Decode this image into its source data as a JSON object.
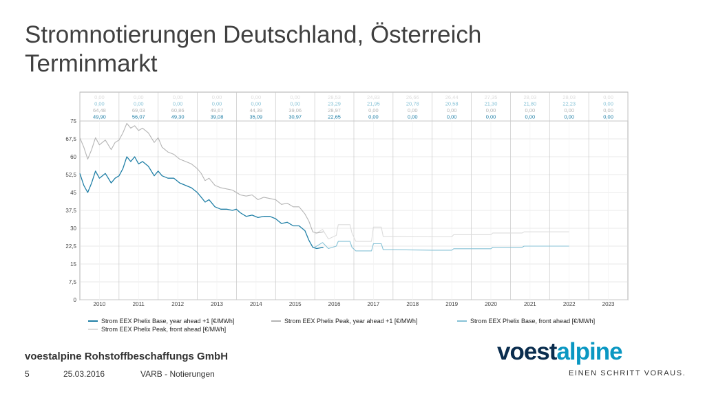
{
  "slide": {
    "title_line1": "Stromnotierungen Deutschland, Österreich",
    "title_line2": "Terminmarkt",
    "company": "voestalpine Rohstoffbeschaffungs GmbH",
    "page_number": "5",
    "date": "25.03.2016",
    "department": "VARB - Notierungen",
    "brand_part1": "voest",
    "brand_part2": "alpine",
    "tagline": "EINEN SCHRITT VORAUS."
  },
  "colors": {
    "base_year": "#1f7fa6",
    "peak_year": "#b4b4b4",
    "base_front": "#86c2d6",
    "peak_front": "#dcdcdc",
    "brand_dark": "#0a2d4e",
    "brand_light": "#0a97c2"
  },
  "chart_data": {
    "type": "line",
    "x_categories": [
      "2010",
      "2011",
      "2012",
      "2013",
      "2014",
      "2015",
      "2016",
      "2017",
      "2018",
      "2019",
      "2020",
      "2021",
      "2022",
      "2023"
    ],
    "y_ticks": [
      "0",
      "7,5",
      "15",
      "22,5",
      "30",
      "37,5",
      "45",
      "52,5",
      "60",
      "67,5",
      "75"
    ],
    "ylim": [
      0,
      75
    ],
    "grid": true,
    "legend_position": "bottom",
    "table_rows": [
      [
        "0,00",
        "0,00",
        "0,00",
        "0,00",
        "0,00",
        "0,00",
        "28,53",
        "24,83",
        "26,66",
        "26,44",
        "27,35",
        "28,03",
        "28,03",
        "0,00"
      ],
      [
        "0,00",
        "0,00",
        "0,00",
        "0,00",
        "0,00",
        "0,00",
        "23,29",
        "21,95",
        "20,78",
        "20,58",
        "21,30",
        "21,80",
        "22,23",
        "0,00"
      ],
      [
        "64,48",
        "69,03",
        "60,86",
        "49,67",
        "44,39",
        "39,06",
        "28,97",
        "0,00",
        "0,00",
        "0,00",
        "0,00",
        "0,00",
        "0,00",
        "0,00"
      ],
      [
        "49,90",
        "56,07",
        "49,30",
        "39,08",
        "35,09",
        "30,97",
        "22,65",
        "0,00",
        "0,00",
        "0,00",
        "0,00",
        "0,00",
        "0,00",
        "0,00"
      ]
    ],
    "series": [
      {
        "name": "Strom EEX Phelix Base, year ahead +1 [€/MWh]",
        "points": [
          [
            2010.0,
            53
          ],
          [
            2010.1,
            48
          ],
          [
            2010.2,
            45
          ],
          [
            2010.3,
            49
          ],
          [
            2010.4,
            54
          ],
          [
            2010.5,
            51
          ],
          [
            2010.65,
            53
          ],
          [
            2010.8,
            49
          ],
          [
            2010.9,
            51
          ],
          [
            2011.0,
            52
          ],
          [
            2011.1,
            55
          ],
          [
            2011.2,
            60
          ],
          [
            2011.3,
            58
          ],
          [
            2011.4,
            60
          ],
          [
            2011.5,
            57
          ],
          [
            2011.6,
            58
          ],
          [
            2011.75,
            56
          ],
          [
            2011.9,
            52
          ],
          [
            2012.0,
            54
          ],
          [
            2012.1,
            52
          ],
          [
            2012.25,
            51
          ],
          [
            2012.4,
            51
          ],
          [
            2012.55,
            49
          ],
          [
            2012.7,
            48
          ],
          [
            2012.85,
            47
          ],
          [
            2013.0,
            45
          ],
          [
            2013.1,
            43
          ],
          [
            2013.2,
            41
          ],
          [
            2013.3,
            42
          ],
          [
            2013.45,
            39
          ],
          [
            2013.6,
            38
          ],
          [
            2013.75,
            38
          ],
          [
            2013.9,
            37.5
          ],
          [
            2014.0,
            38
          ],
          [
            2014.1,
            36.5
          ],
          [
            2014.25,
            35
          ],
          [
            2014.4,
            35.5
          ],
          [
            2014.55,
            34.5
          ],
          [
            2014.7,
            35
          ],
          [
            2014.85,
            35
          ],
          [
            2015.0,
            34
          ],
          [
            2015.15,
            32
          ],
          [
            2015.3,
            32.5
          ],
          [
            2015.45,
            31
          ],
          [
            2015.6,
            31
          ],
          [
            2015.75,
            29
          ],
          [
            2015.85,
            25
          ],
          [
            2015.95,
            22
          ],
          [
            2016.05,
            21.5
          ],
          [
            2016.22,
            22
          ]
        ]
      },
      {
        "name": "Strom EEX Phelix Peak, year ahead +1 [€/MWh]",
        "points": [
          [
            2010.0,
            68
          ],
          [
            2010.1,
            64
          ],
          [
            2010.2,
            59
          ],
          [
            2010.3,
            63
          ],
          [
            2010.4,
            68
          ],
          [
            2010.5,
            65
          ],
          [
            2010.65,
            67
          ],
          [
            2010.8,
            63
          ],
          [
            2010.9,
            66
          ],
          [
            2011.0,
            67
          ],
          [
            2011.1,
            70
          ],
          [
            2011.2,
            74
          ],
          [
            2011.3,
            72
          ],
          [
            2011.4,
            73
          ],
          [
            2011.5,
            71
          ],
          [
            2011.6,
            72
          ],
          [
            2011.75,
            70
          ],
          [
            2011.9,
            66
          ],
          [
            2012.0,
            68
          ],
          [
            2012.1,
            64
          ],
          [
            2012.25,
            62
          ],
          [
            2012.4,
            61
          ],
          [
            2012.55,
            59
          ],
          [
            2012.7,
            58
          ],
          [
            2012.85,
            57
          ],
          [
            2013.0,
            55
          ],
          [
            2013.1,
            53
          ],
          [
            2013.2,
            50
          ],
          [
            2013.3,
            51
          ],
          [
            2013.45,
            48
          ],
          [
            2013.6,
            47
          ],
          [
            2013.75,
            46.5
          ],
          [
            2013.9,
            46
          ],
          [
            2014.0,
            45
          ],
          [
            2014.1,
            44
          ],
          [
            2014.25,
            43.5
          ],
          [
            2014.4,
            44
          ],
          [
            2014.55,
            42
          ],
          [
            2014.7,
            43
          ],
          [
            2014.85,
            42.5
          ],
          [
            2015.0,
            42
          ],
          [
            2015.15,
            40
          ],
          [
            2015.3,
            40.5
          ],
          [
            2015.45,
            39
          ],
          [
            2015.6,
            39
          ],
          [
            2015.75,
            36
          ],
          [
            2015.85,
            33
          ],
          [
            2015.95,
            28.5
          ],
          [
            2016.05,
            28
          ],
          [
            2016.22,
            28.5
          ]
        ]
      },
      {
        "name": "Strom EEX Phelix Base, front ahead [€/MWh]",
        "points": [
          [
            2016.0,
            22
          ],
          [
            2016.2,
            24
          ],
          [
            2016.35,
            21.5
          ],
          [
            2016.55,
            22.5
          ],
          [
            2016.6,
            24.5
          ],
          [
            2016.9,
            24.5
          ],
          [
            2016.95,
            22
          ],
          [
            2017.05,
            20.5
          ],
          [
            2017.45,
            20.5
          ],
          [
            2017.5,
            23.5
          ],
          [
            2017.7,
            23.5
          ],
          [
            2017.75,
            21
          ],
          [
            2018.0,
            21
          ],
          [
            2019.0,
            20.8
          ],
          [
            2019.5,
            20.8
          ],
          [
            2019.55,
            21.4
          ],
          [
            2020.5,
            21.4
          ],
          [
            2020.55,
            22
          ],
          [
            2021.3,
            22
          ],
          [
            2021.35,
            22.5
          ],
          [
            2022.5,
            22.5
          ]
        ]
      },
      {
        "name": "Strom EEX Phelix Peak, front ahead [€/MWh]",
        "points": [
          [
            2016.0,
            27.5
          ],
          [
            2016.2,
            29.5
          ],
          [
            2016.35,
            25.5
          ],
          [
            2016.55,
            27
          ],
          [
            2016.6,
            31.5
          ],
          [
            2016.9,
            31.5
          ],
          [
            2016.95,
            28
          ],
          [
            2017.05,
            24.5
          ],
          [
            2017.45,
            24.5
          ],
          [
            2017.5,
            30.5
          ],
          [
            2017.7,
            30.5
          ],
          [
            2017.75,
            26.5
          ],
          [
            2018.0,
            26.5
          ],
          [
            2019.0,
            26.4
          ],
          [
            2019.5,
            26.4
          ],
          [
            2019.55,
            27.3
          ],
          [
            2020.5,
            27.3
          ],
          [
            2020.55,
            28
          ],
          [
            2021.3,
            28
          ],
          [
            2021.35,
            28.5
          ],
          [
            2022.5,
            28.5
          ]
        ]
      }
    ]
  }
}
